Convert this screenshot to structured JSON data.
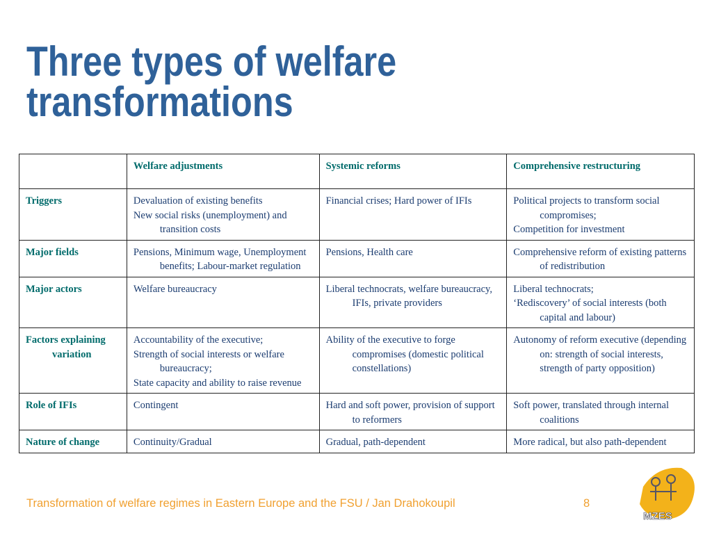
{
  "header": {
    "title_lines": [
      "Three types of welfare",
      "transformations"
    ]
  },
  "table": {
    "columns": [
      "Welfare adjustments",
      "Systemic reforms",
      "Comprehensive restructuring"
    ],
    "rows": [
      {
        "label": "Triggers",
        "cells": [
          [
            "Devaluation of existing benefits",
            "New social risks (unemployment) and transition costs"
          ],
          [
            "Financial crises; Hard power of IFIs"
          ],
          [
            "Political projects to transform social compromises;",
            "Competition for investment"
          ]
        ]
      },
      {
        "label": "Major fields",
        "cells": [
          [
            "Pensions, Minimum wage, Unemployment benefits; Labour-market regulation"
          ],
          [
            "Pensions, Health care"
          ],
          [
            "Comprehensive reform of existing patterns of redistribution"
          ]
        ]
      },
      {
        "label": "Major actors",
        "cells": [
          [
            "Welfare bureaucracy"
          ],
          [
            "Liberal technocrats, welfare bureaucracy, IFIs, private providers"
          ],
          [
            "Liberal technocrats;",
            "‘Rediscovery’ of social interests (both capital and labour)"
          ]
        ]
      },
      {
        "label": "Factors explaining variation",
        "cells": [
          [
            "Accountability of the executive;",
            "Strength of social interests or welfare bureaucracy;",
            "State capacity and ability to raise revenue"
          ],
          [
            "Ability of the executive to forge compromises (domestic political constellations)"
          ],
          [
            "Autonomy of reform executive (depending on: strength of social interests, strength of party opposition)"
          ]
        ]
      },
      {
        "label": "Role of IFIs",
        "cells": [
          [
            "Contingent"
          ],
          [
            "Hard and soft power, provision of support to reformers"
          ],
          [
            "Soft power, translated through internal coalitions"
          ]
        ]
      },
      {
        "label": "Nature of change",
        "cells": [
          [
            "Continuity/Gradual"
          ],
          [
            "Gradual, path-dependent"
          ],
          [
            "More radical, but also path-dependent"
          ]
        ]
      }
    ]
  },
  "footer": {
    "text": "Transformation of welfare regimes in Eastern Europe and the FSU / Jan Drahokoupil",
    "page": "8",
    "logo": "MZES"
  }
}
